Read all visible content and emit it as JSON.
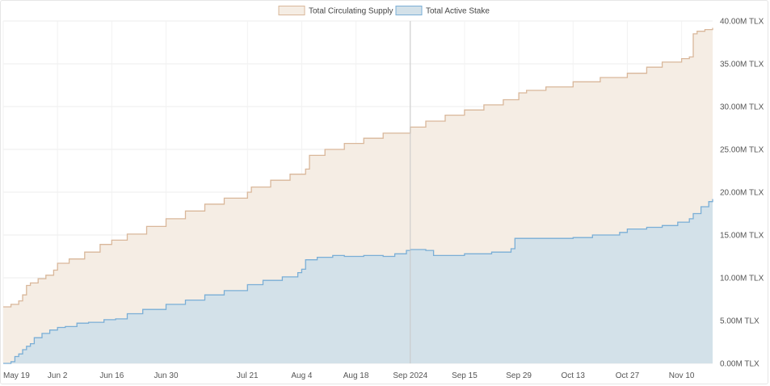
{
  "chart_data": {
    "type": "area",
    "title": "",
    "xlabel": "",
    "ylabel": "",
    "y_unit": "M TLX",
    "ylim": [
      0,
      40
    ],
    "y_ticks": [
      {
        "value": 0,
        "label": "0.00M TLX"
      },
      {
        "value": 5,
        "label": "5.00M TLX"
      },
      {
        "value": 10,
        "label": "10.00M TLX"
      },
      {
        "value": 15,
        "label": "15.00M TLX"
      },
      {
        "value": 20,
        "label": "20.00M TLX"
      },
      {
        "value": 25,
        "label": "25.00M TLX"
      },
      {
        "value": 30,
        "label": "30.00M TLX"
      },
      {
        "value": 35,
        "label": "35.00M TLX"
      },
      {
        "value": 40,
        "label": "40.00M TLX"
      }
    ],
    "xlim": [
      "2024-05-19",
      "2024-11-18"
    ],
    "x_ticks": [
      {
        "date": "2024-05-19",
        "label": "May 19"
      },
      {
        "date": "2024-06-02",
        "label": "Jun 2"
      },
      {
        "date": "2024-06-16",
        "label": "Jun 16"
      },
      {
        "date": "2024-06-30",
        "label": "Jun 30"
      },
      {
        "date": "2024-07-21",
        "label": "Jul 21"
      },
      {
        "date": "2024-08-04",
        "label": "Aug 4"
      },
      {
        "date": "2024-08-18",
        "label": "Aug 18"
      },
      {
        "date": "2024-09-01",
        "label": "Sep 2024"
      },
      {
        "date": "2024-09-15",
        "label": "Sep 15"
      },
      {
        "date": "2024-09-29",
        "label": "Sep 29"
      },
      {
        "date": "2024-10-13",
        "label": "Oct 13"
      },
      {
        "date": "2024-10-27",
        "label": "Oct 27"
      },
      {
        "date": "2024-11-10",
        "label": "Nov 10"
      }
    ],
    "grid": true,
    "legend": "top-center",
    "series": [
      {
        "name": "Total Circulating Supply",
        "stroke": "#d9b79a",
        "fill": "#f5ede4",
        "points": [
          [
            "2024-05-19",
            6.6
          ],
          [
            "2024-05-21",
            6.9
          ],
          [
            "2024-05-23",
            7.3
          ],
          [
            "2024-05-24",
            8.0
          ],
          [
            "2024-05-25",
            9.1
          ],
          [
            "2024-05-26",
            9.4
          ],
          [
            "2024-05-28",
            9.9
          ],
          [
            "2024-05-30",
            10.3
          ],
          [
            "2024-06-01",
            10.9
          ],
          [
            "2024-06-02",
            11.7
          ],
          [
            "2024-06-05",
            12.2
          ],
          [
            "2024-06-09",
            13.0
          ],
          [
            "2024-06-13",
            13.9
          ],
          [
            "2024-06-16",
            14.4
          ],
          [
            "2024-06-20",
            15.1
          ],
          [
            "2024-06-25",
            16.0
          ],
          [
            "2024-06-30",
            16.9
          ],
          [
            "2024-07-05",
            17.8
          ],
          [
            "2024-07-10",
            18.6
          ],
          [
            "2024-07-15",
            19.3
          ],
          [
            "2024-07-21",
            20.0
          ],
          [
            "2024-07-22",
            20.6
          ],
          [
            "2024-07-27",
            21.4
          ],
          [
            "2024-08-01",
            22.1
          ],
          [
            "2024-08-05",
            22.7
          ],
          [
            "2024-08-06",
            24.3
          ],
          [
            "2024-08-10",
            25.0
          ],
          [
            "2024-08-15",
            25.7
          ],
          [
            "2024-08-20",
            26.3
          ],
          [
            "2024-08-25",
            26.9
          ],
          [
            "2024-09-01",
            27.6
          ],
          [
            "2024-09-05",
            28.3
          ],
          [
            "2024-09-10",
            29.0
          ],
          [
            "2024-09-15",
            29.6
          ],
          [
            "2024-09-20",
            30.2
          ],
          [
            "2024-09-25",
            30.8
          ],
          [
            "2024-09-29",
            31.6
          ],
          [
            "2024-10-01",
            31.9
          ],
          [
            "2024-10-06",
            32.3
          ],
          [
            "2024-10-13",
            32.9
          ],
          [
            "2024-10-20",
            33.4
          ],
          [
            "2024-10-27",
            33.9
          ],
          [
            "2024-11-01",
            34.6
          ],
          [
            "2024-11-05",
            35.2
          ],
          [
            "2024-11-10",
            35.6
          ],
          [
            "2024-11-12",
            35.8
          ],
          [
            "2024-11-13",
            38.5
          ],
          [
            "2024-11-14",
            38.8
          ],
          [
            "2024-11-16",
            39.0
          ],
          [
            "2024-11-18",
            39.2
          ]
        ]
      },
      {
        "name": "Total Active Stake",
        "stroke": "#7aaed6",
        "fill": "#d3e1e9",
        "points": [
          [
            "2024-05-19",
            0.0
          ],
          [
            "2024-05-21",
            0.2
          ],
          [
            "2024-05-22",
            0.8
          ],
          [
            "2024-05-23",
            1.1
          ],
          [
            "2024-05-24",
            1.6
          ],
          [
            "2024-05-25",
            2.0
          ],
          [
            "2024-05-26",
            2.3
          ],
          [
            "2024-05-27",
            3.0
          ],
          [
            "2024-05-29",
            3.5
          ],
          [
            "2024-05-31",
            3.9
          ],
          [
            "2024-06-02",
            4.2
          ],
          [
            "2024-06-04",
            4.3
          ],
          [
            "2024-06-07",
            4.7
          ],
          [
            "2024-06-10",
            4.8
          ],
          [
            "2024-06-14",
            5.1
          ],
          [
            "2024-06-17",
            5.2
          ],
          [
            "2024-06-20",
            5.8
          ],
          [
            "2024-06-24",
            6.3
          ],
          [
            "2024-06-30",
            6.9
          ],
          [
            "2024-07-05",
            7.4
          ],
          [
            "2024-07-10",
            8.0
          ],
          [
            "2024-07-15",
            8.5
          ],
          [
            "2024-07-21",
            9.2
          ],
          [
            "2024-07-25",
            9.7
          ],
          [
            "2024-07-30",
            10.1
          ],
          [
            "2024-08-03",
            10.6
          ],
          [
            "2024-08-04",
            11.0
          ],
          [
            "2024-08-05",
            12.1
          ],
          [
            "2024-08-08",
            12.4
          ],
          [
            "2024-08-12",
            12.6
          ],
          [
            "2024-08-15",
            12.5
          ],
          [
            "2024-08-20",
            12.6
          ],
          [
            "2024-08-25",
            12.5
          ],
          [
            "2024-08-28",
            12.8
          ],
          [
            "2024-08-31",
            13.2
          ],
          [
            "2024-09-01",
            13.3
          ],
          [
            "2024-09-05",
            13.2
          ],
          [
            "2024-09-07",
            12.6
          ],
          [
            "2024-09-15",
            12.8
          ],
          [
            "2024-09-22",
            13.0
          ],
          [
            "2024-09-27",
            13.4
          ],
          [
            "2024-09-28",
            14.6
          ],
          [
            "2024-10-03",
            14.6
          ],
          [
            "2024-10-13",
            14.7
          ],
          [
            "2024-10-18",
            15.0
          ],
          [
            "2024-10-25",
            15.3
          ],
          [
            "2024-10-27",
            15.7
          ],
          [
            "2024-11-01",
            15.9
          ],
          [
            "2024-11-05",
            16.1
          ],
          [
            "2024-11-09",
            16.5
          ],
          [
            "2024-11-12",
            16.9
          ],
          [
            "2024-11-13",
            17.5
          ],
          [
            "2024-11-15",
            18.3
          ],
          [
            "2024-11-17",
            18.9
          ],
          [
            "2024-11-18",
            19.2
          ]
        ]
      }
    ],
    "crosshair_date": "2024-09-01"
  }
}
